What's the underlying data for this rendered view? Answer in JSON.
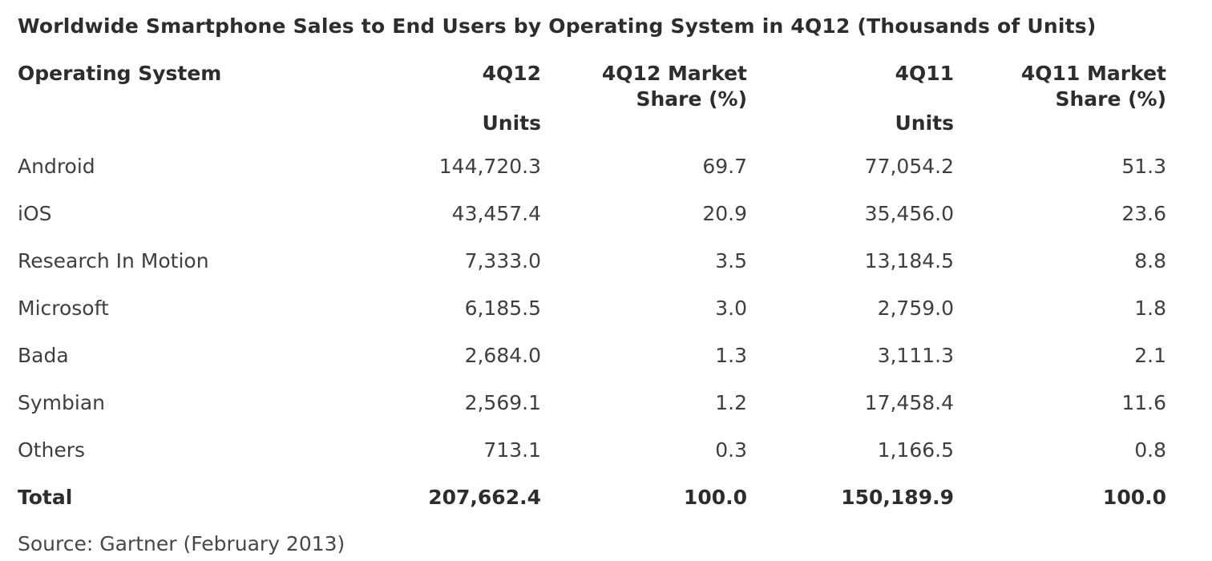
{
  "title": "Worldwide Smartphone Sales to End Users by Operating System in 4Q12 (Thousands of Units)",
  "source": "Source: Gartner (February 2013)",
  "table": {
    "header": {
      "os": "Operating System",
      "q12_units_line1": "4Q12",
      "q12_units_line2": "Units",
      "q12_share_line1": "4Q12 Market",
      "q12_share_line2": "Share (%)",
      "q11_units_line1": "4Q11",
      "q11_units_line2": "Units",
      "q11_share_line1": "4Q11 Market",
      "q11_share_line2": "Share (%)"
    },
    "rows": [
      {
        "os": "Android",
        "q12_units": "144,720.3",
        "q12_share": "69.7",
        "q11_units": "77,054.2",
        "q11_share": "51.3"
      },
      {
        "os": "iOS",
        "q12_units": "43,457.4",
        "q12_share": "20.9",
        "q11_units": "35,456.0",
        "q11_share": "23.6"
      },
      {
        "os": "Research In Motion",
        "q12_units": "7,333.0",
        "q12_share": "3.5",
        "q11_units": "13,184.5",
        "q11_share": "8.8"
      },
      {
        "os": "Microsoft",
        "q12_units": "6,185.5",
        "q12_share": "3.0",
        "q11_units": "2,759.0",
        "q11_share": "1.8"
      },
      {
        "os": "Bada",
        "q12_units": "2,684.0",
        "q12_share": "1.3",
        "q11_units": "3,111.3",
        "q11_share": "2.1"
      },
      {
        "os": "Symbian",
        "q12_units": "2,569.1",
        "q12_share": "1.2",
        "q11_units": "17,458.4",
        "q11_share": "11.6"
      },
      {
        "os": "Others",
        "q12_units": "713.1",
        "q12_share": "0.3",
        "q11_units": "1,166.5",
        "q11_share": "0.8"
      }
    ],
    "total": {
      "os": "Total",
      "q12_units": "207,662.4",
      "q12_share": "100.0",
      "q11_units": "150,189.9",
      "q11_share": "100.0"
    }
  },
  "chart_data": {
    "type": "table",
    "title": "Worldwide Smartphone Sales to End Users by Operating System in 4Q12 (Thousands of Units)",
    "columns": [
      "Operating System",
      "4Q12 Units",
      "4Q12 Market Share (%)",
      "4Q11 Units",
      "4Q11 Market Share (%)"
    ],
    "rows": [
      [
        "Android",
        144720.3,
        69.7,
        77054.2,
        51.3
      ],
      [
        "iOS",
        43457.4,
        20.9,
        35456.0,
        23.6
      ],
      [
        "Research In Motion",
        7333.0,
        3.5,
        13184.5,
        8.8
      ],
      [
        "Microsoft",
        6185.5,
        3.0,
        2759.0,
        1.8
      ],
      [
        "Bada",
        2684.0,
        1.3,
        3111.3,
        2.1
      ],
      [
        "Symbian",
        2569.1,
        1.2,
        17458.4,
        11.6
      ],
      [
        "Others",
        713.1,
        0.3,
        1166.5,
        0.8
      ],
      [
        "Total",
        207662.4,
        100.0,
        150189.9,
        100.0
      ]
    ],
    "source": "Source: Gartner (February 2013)"
  }
}
